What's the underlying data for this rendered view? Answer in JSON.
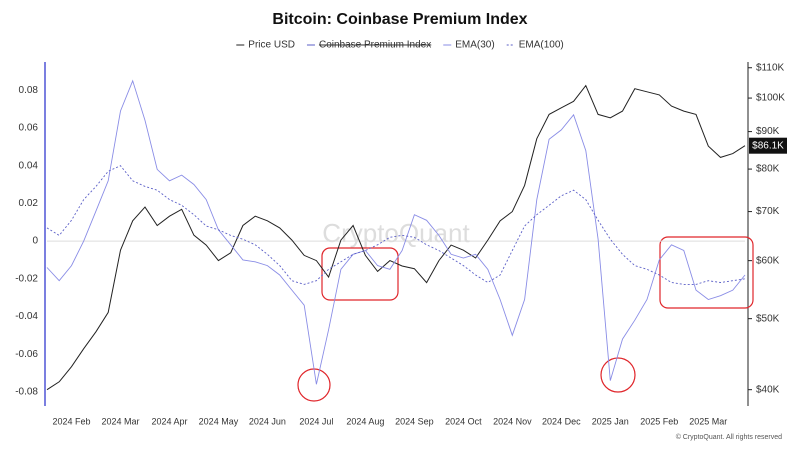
{
  "chart_data": {
    "type": "line",
    "title": "Bitcoin: Coinbase Premium Index",
    "watermark": "CryptoQuant",
    "copyright": "© CryptoQuant. All rights reserved",
    "categories": [
      null,
      null,
      "2024 Feb",
      null,
      null,
      null,
      "2024 Mar",
      null,
      null,
      null,
      "2024 Apr",
      null,
      null,
      null,
      "2024 May",
      null,
      null,
      null,
      "2024 Jun",
      null,
      null,
      null,
      "2024 Jul",
      null,
      null,
      null,
      "2024 Aug",
      null,
      null,
      null,
      "2024 Sep",
      null,
      null,
      null,
      "2024 Oct",
      null,
      null,
      null,
      "2024 Nov",
      null,
      null,
      null,
      "2024 Dec",
      null,
      null,
      null,
      "2025 Jan",
      null,
      null,
      null,
      "2025 Feb",
      null,
      null,
      null,
      "2025 Mar",
      null,
      null,
      null
    ],
    "ylim": [
      -0.0875,
      0.095
    ],
    "yticks": [
      -0.08,
      -0.06,
      -0.04,
      -0.02,
      0,
      0.02,
      0.04,
      0.06,
      0.08
    ],
    "y2lim": [
      38000,
      112000
    ],
    "y2log": true,
    "y2ticks": [
      {
        "value": 40000,
        "label": "$40K"
      },
      {
        "value": 50000,
        "label": "$50K"
      },
      {
        "value": 60000,
        "label": "$60K"
      },
      {
        "value": 70000,
        "label": "$70K"
      },
      {
        "value": 80000,
        "label": "$80K"
      },
      {
        "value": 90000,
        "label": "$90K"
      },
      {
        "value": 100000,
        "label": "$100K"
      },
      {
        "value": 110000,
        "label": "$110K"
      }
    ],
    "series": [
      {
        "name": "Price USD",
        "color": "#222222",
        "axis": "y2",
        "values": [
          40000,
          41000,
          43000,
          45500,
          48000,
          51000,
          62000,
          68000,
          71000,
          67000,
          69000,
          70500,
          65000,
          63000,
          60000,
          61500,
          67000,
          69000,
          68000,
          66500,
          64000,
          61000,
          60000,
          57000,
          64000,
          67000,
          61000,
          58000,
          60000,
          59000,
          58500,
          56000,
          60000,
          63000,
          62000,
          60500,
          64000,
          68000,
          70000,
          76000,
          88000,
          95000,
          97000,
          99000,
          104000,
          95000,
          94000,
          96000,
          103000,
          102000,
          101000,
          97500,
          96000,
          95000,
          86000,
          83000,
          84000,
          86100
        ],
        "value_labels": [
          null,
          null,
          null,
          null,
          null,
          null,
          null,
          null,
          null,
          null,
          null,
          null,
          null,
          null,
          null,
          null,
          null,
          null,
          null,
          null,
          null,
          null,
          null,
          null,
          null,
          null,
          null,
          null,
          null,
          null,
          null,
          null,
          null,
          null,
          null,
          null,
          null,
          null,
          null,
          null,
          null,
          null,
          null,
          null,
          null,
          null,
          null,
          null,
          null,
          null,
          null,
          null,
          null,
          null,
          null,
          null,
          null,
          "$86.1K"
        ]
      },
      {
        "name": "Coinbase Premium Index",
        "color": "#5b5fc7",
        "visible": false
      },
      {
        "name": "EMA(30)",
        "color": "#8a8de6",
        "values": [
          -0.014,
          -0.021,
          -0.013,
          0,
          0.016,
          0.032,
          0.069,
          0.085,
          0.064,
          0.038,
          0.032,
          0.035,
          0.03,
          0.022,
          0.006,
          -0.002,
          -0.01,
          -0.011,
          -0.013,
          -0.018,
          -0.026,
          -0.034,
          -0.076,
          -0.047,
          -0.015,
          -0.007,
          -0.005,
          -0.013,
          -0.015,
          -0.005,
          0.014,
          0.011,
          0.003,
          -0.007,
          -0.009,
          -0.007,
          -0.015,
          -0.031,
          -0.05,
          -0.031,
          0.022,
          0.054,
          0.059,
          0.067,
          0.048,
          0.001,
          -0.074,
          -0.052,
          -0.042,
          -0.031,
          -0.01,
          -0.002,
          -0.005,
          -0.026,
          -0.031,
          -0.029,
          -0.026,
          -0.018
        ]
      },
      {
        "name": "EMA(100)",
        "color": "#5b5fc7",
        "dashed": true,
        "values": [
          0.007,
          0.003,
          0.011,
          0.022,
          0.029,
          0.037,
          0.04,
          0.032,
          0.029,
          0.027,
          0.022,
          0.019,
          0.014,
          0.008,
          0.006,
          0.003,
          0.001,
          -0.002,
          -0.007,
          -0.013,
          -0.021,
          -0.023,
          -0.021,
          -0.015,
          -0.011,
          -0.007,
          -0.005,
          -0.002,
          0.002,
          0.003,
          0.002,
          -0.002,
          -0.005,
          -0.009,
          -0.013,
          -0.018,
          -0.022,
          -0.018,
          -0.005,
          0.008,
          0.014,
          0.019,
          0.024,
          0.027,
          0.022,
          0.011,
          0.001,
          -0.007,
          -0.013,
          -0.015,
          -0.018,
          -0.022,
          -0.023,
          -0.023,
          -0.021,
          -0.022,
          -0.021,
          -0.02
        ]
      }
    ]
  }
}
